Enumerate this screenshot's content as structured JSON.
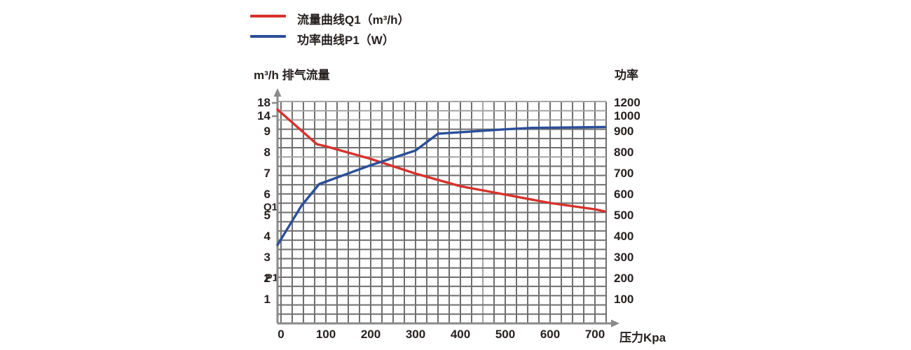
{
  "page": {
    "background": "#ffffff"
  },
  "colors": {
    "text": "#272020",
    "axis": "#8a8a8a",
    "grid": "#6f6f6f",
    "grid_light": "#a3a3a3",
    "q1_red": "#d7312a",
    "p1_blue": "#2a4f9a"
  },
  "legend": {
    "items": [
      {
        "series_id": "Q1",
        "label": "流量曲线Q1（m³/h）",
        "color": "#d7312a"
      },
      {
        "series_id": "P1",
        "label": "功率曲线P1（W）",
        "color": "#2a4f9a"
      }
    ]
  },
  "chart_data": {
    "type": "line",
    "title": "",
    "x_axis": {
      "title": "压力Kpa",
      "unit": "Kpa",
      "ticks": [
        0,
        100,
        200,
        300,
        400,
        500,
        600,
        700
      ],
      "range": [
        0,
        725
      ],
      "grid": true,
      "minor_grid_step": 25
    },
    "y_axis_left": {
      "title": "m³/h 排气流量",
      "unit": "m³/h",
      "ticks": [
        18,
        14,
        9,
        8,
        7,
        6,
        5,
        4,
        3,
        2,
        1
      ],
      "note": "scale compressed above 9"
    },
    "y_axis_right": {
      "title": "功率",
      "unit": "W",
      "ticks": [
        1200,
        1000,
        900,
        800,
        700,
        600,
        500,
        400,
        300,
        200,
        100
      ],
      "note": "scale compressed above 900"
    },
    "series": [
      {
        "id": "Q1",
        "name": "流量曲线Q1（m³/h）",
        "axis": "left",
        "color": "#d7312a",
        "inline_label": "Q1",
        "points": [
          [
            0,
            16
          ],
          [
            80,
            8.4
          ],
          [
            100,
            8.3
          ],
          [
            200,
            7.7
          ],
          [
            300,
            7.0
          ],
          [
            400,
            6.4
          ],
          [
            500,
            6.0
          ],
          [
            600,
            5.6
          ],
          [
            700,
            5.3
          ],
          [
            722,
            5.2
          ]
        ]
      },
      {
        "id": "P1",
        "name": "功率曲线P1（W）",
        "axis": "right",
        "color": "#2a4f9a",
        "inline_label": "P1",
        "points": [
          [
            0,
            360
          ],
          [
            45,
            545
          ],
          [
            85,
            650
          ],
          [
            200,
            740
          ],
          [
            300,
            810
          ],
          [
            350,
            890
          ],
          [
            400,
            897
          ],
          [
            500,
            915
          ],
          [
            560,
            924
          ],
          [
            722,
            930
          ]
        ]
      }
    ],
    "legend_position": "top-left",
    "grid_on": true
  }
}
